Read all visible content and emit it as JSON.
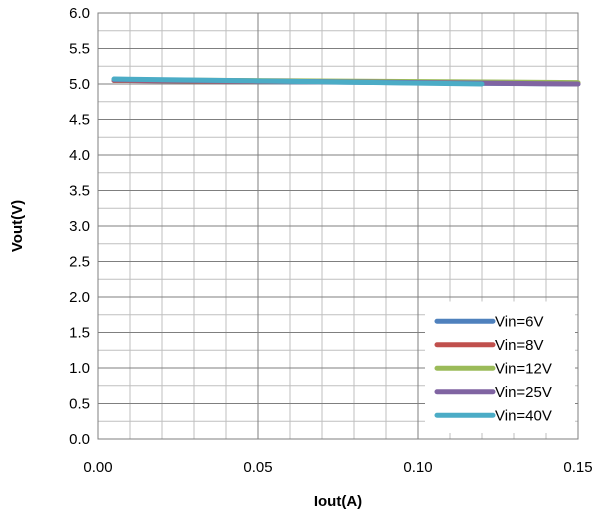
{
  "chart_data": {
    "type": "line",
    "xlabel": "Iout(A)",
    "ylabel": "Vout(V)",
    "xlim": [
      0,
      0.15
    ],
    "ylim": [
      0,
      6.0
    ],
    "x_ticks": [
      0.0,
      0.05,
      0.1,
      0.15
    ],
    "x_tick_labels": [
      "0.00",
      "0.05",
      "0.10",
      "0.15"
    ],
    "y_ticks": [
      0.0,
      0.5,
      1.0,
      1.5,
      2.0,
      2.5,
      3.0,
      3.5,
      4.0,
      4.5,
      5.0,
      5.5,
      6.0
    ],
    "y_tick_labels": [
      "0.0",
      "0.5",
      "1.0",
      "1.5",
      "2.0",
      "2.5",
      "3.0",
      "3.5",
      "4.0",
      "4.5",
      "5.0",
      "5.5",
      "6.0"
    ],
    "minor_x_step": 0.01,
    "minor_y_step": 0.25,
    "grid": true,
    "legend_position": "bottom-right",
    "series": [
      {
        "name": "Vin=6V",
        "color": "#4F81BD",
        "x": [
          0.005,
          0.15
        ],
        "y": [
          5.05,
          5.0
        ]
      },
      {
        "name": "Vin=8V",
        "color": "#C0504D",
        "x": [
          0.005,
          0.15
        ],
        "y": [
          5.05,
          5.01
        ]
      },
      {
        "name": "Vin=12V",
        "color": "#9BBB59",
        "x": [
          0.005,
          0.15
        ],
        "y": [
          5.06,
          5.02
        ]
      },
      {
        "name": "Vin=25V",
        "color": "#8064A2",
        "x": [
          0.005,
          0.15
        ],
        "y": [
          5.06,
          5.0
        ]
      },
      {
        "name": "Vin=40V",
        "color": "#4BACC6",
        "x": [
          0.005,
          0.12
        ],
        "y": [
          5.07,
          5.0
        ]
      }
    ]
  }
}
